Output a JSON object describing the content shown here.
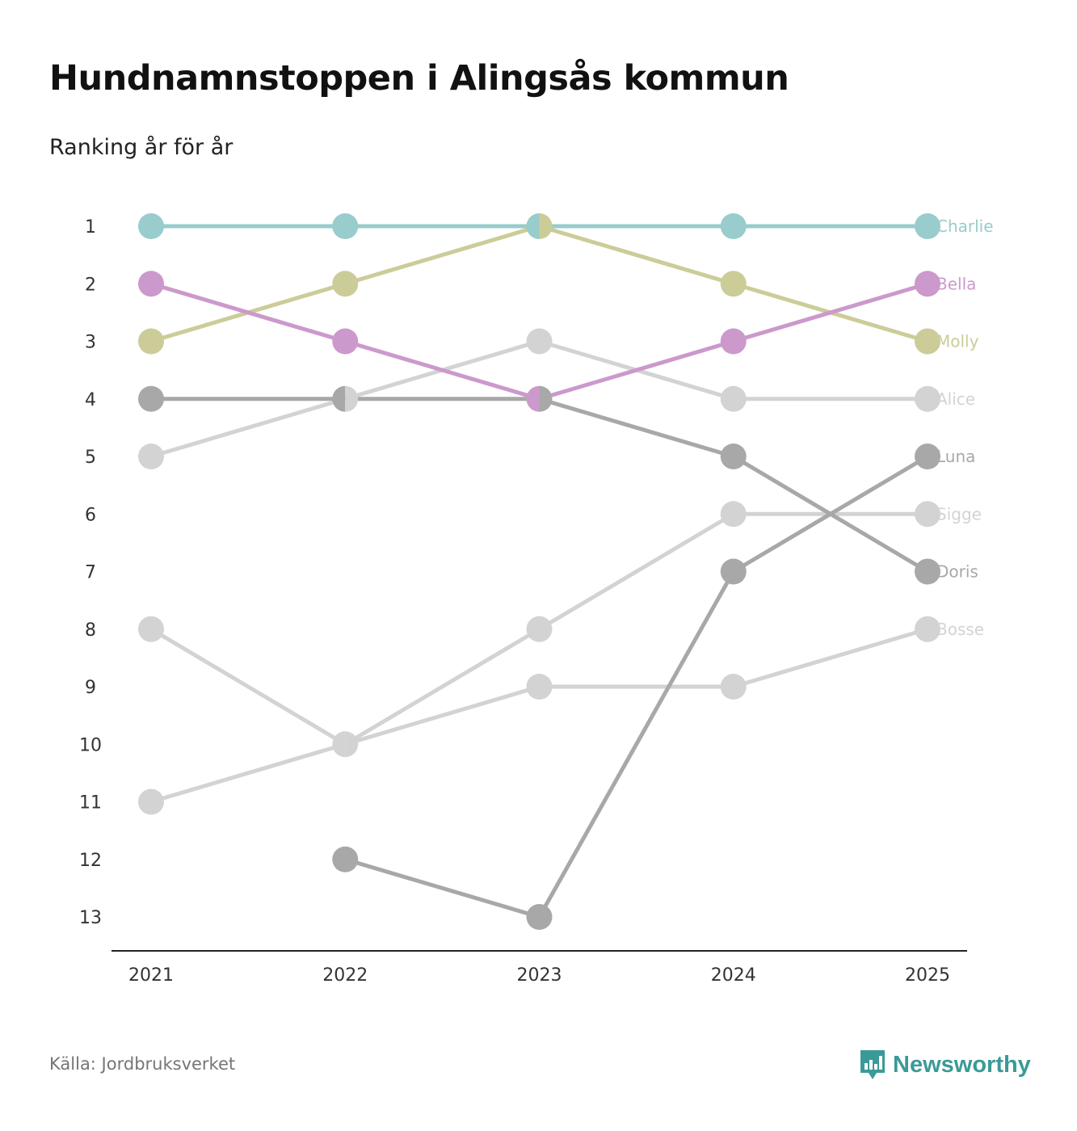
{
  "title": "Hundnamnstoppen i Alingsås kommun",
  "subtitle": "Ranking år för år",
  "source": "Källa: Jordbruksverket",
  "brand": {
    "name": "Newsworthy",
    "icon": "bar-chart-speech-bubble-icon",
    "color": "#3a9a97"
  },
  "colors": {
    "axis": "#222222",
    "tick_text": "#333333"
  },
  "chart_data": {
    "type": "line",
    "subtype": "bump",
    "title": "Hundnamnstoppen i Alingsås kommun",
    "subtitle": "Ranking år för år",
    "xlabel": "",
    "ylabel": "",
    "y_reversed": true,
    "ylim": [
      1,
      13
    ],
    "y_ticks": [
      "1",
      "2",
      "3",
      "4",
      "5",
      "6",
      "7",
      "8",
      "9",
      "10",
      "11",
      "12",
      "13"
    ],
    "x": [
      "2021",
      "2022",
      "2023",
      "2024",
      "2025"
    ],
    "grid": false,
    "series": [
      {
        "name": "Alice",
        "color": "#d3d3d3",
        "values": [
          5,
          4,
          3,
          4,
          4
        ]
      },
      {
        "name": "Sigge",
        "color": "#d3d3d3",
        "values": [
          11,
          10,
          8,
          6,
          6
        ]
      },
      {
        "name": "Bosse",
        "color": "#d3d3d3",
        "values": [
          8,
          10,
          9,
          9,
          8
        ]
      },
      {
        "name": "Luna",
        "color": "#a8a8a8",
        "values": [
          null,
          12,
          13,
          7,
          5
        ]
      },
      {
        "name": "Doris",
        "color": "#a8a8a8",
        "values": [
          4,
          4,
          4,
          5,
          7
        ]
      },
      {
        "name": "Molly",
        "color": "#cccc99",
        "values": [
          3,
          2,
          1,
          2,
          3
        ]
      },
      {
        "name": "Bella",
        "color": "#cc99cc",
        "values": [
          2,
          3,
          4,
          3,
          2
        ]
      },
      {
        "name": "Charlie",
        "color": "#99cccc",
        "values": [
          1,
          1,
          1,
          1,
          1
        ]
      }
    ]
  }
}
